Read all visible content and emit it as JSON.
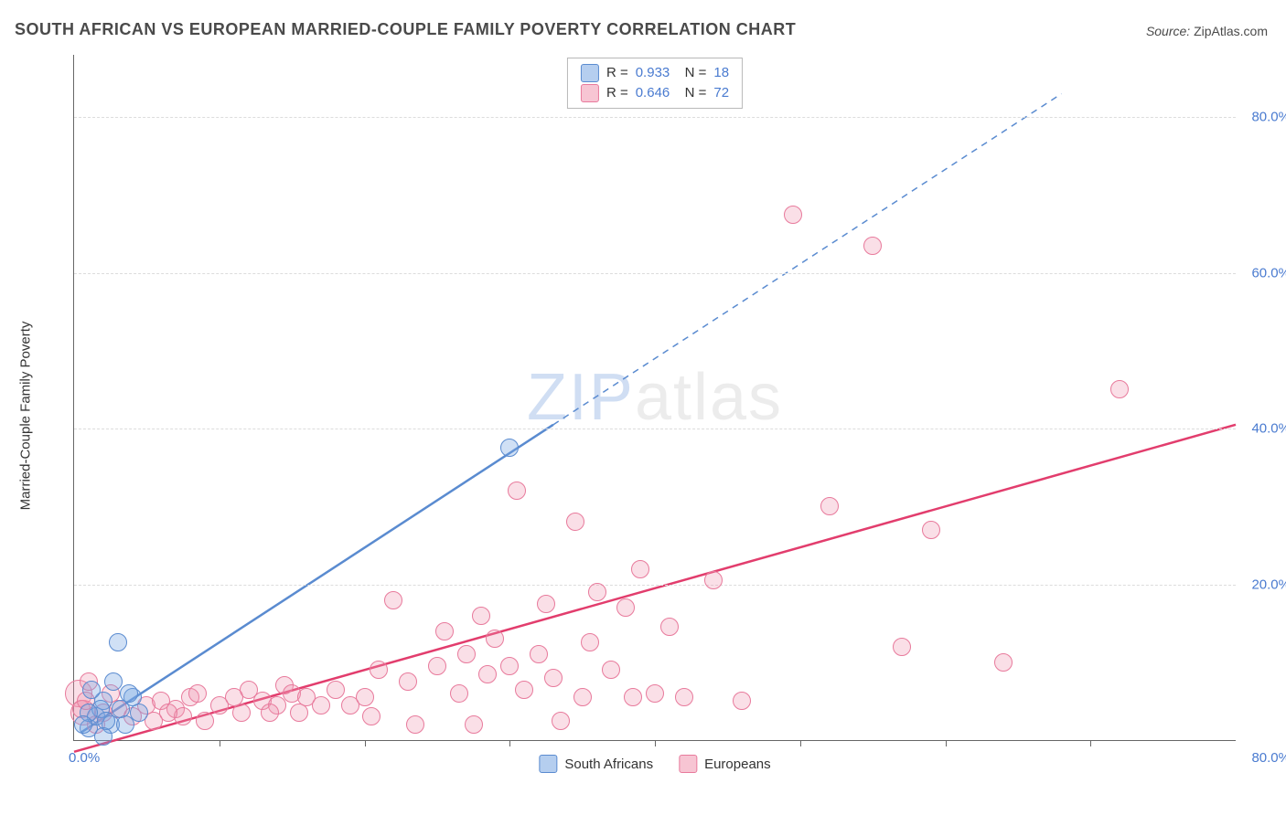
{
  "title": "SOUTH AFRICAN VS EUROPEAN MARRIED-COUPLE FAMILY POVERTY CORRELATION CHART",
  "source_label": "Source:",
  "source_value": "ZipAtlas.com",
  "watermark": {
    "zip": "ZIP",
    "rest": "atlas"
  },
  "chart": {
    "type": "scatter",
    "ylabel": "Married-Couple Family Poverty",
    "xlim": [
      0,
      80
    ],
    "ylim": [
      0,
      88
    ],
    "x_origin_label": "0.0%",
    "x_max_label": "80.0%",
    "x_tick_positions": [
      10,
      20,
      30,
      40,
      50,
      60,
      70
    ],
    "y_gridlines": [
      20,
      40,
      60,
      80
    ],
    "y_tick_labels": [
      "20.0%",
      "40.0%",
      "60.0%",
      "80.0%"
    ],
    "background_color": "#ffffff",
    "grid_color": "#dcdcdc",
    "axis_color": "#666666",
    "tick_label_color": "#4a7bd0",
    "label_fontsize": 15,
    "title_fontsize": 18,
    "point_radius": 9,
    "series": [
      {
        "name": "South Africans",
        "class": "blue",
        "color": "#5a8bd0",
        "fill": "rgba(120,165,225,0.35)",
        "stats": {
          "R": "0.933",
          "N": "18"
        },
        "trend": {
          "style": "solid-then-dashed",
          "solid": {
            "x1": 0.5,
            "y1": 1.0,
            "x2": 33,
            "y2": 40.5
          },
          "dashed": {
            "x1": 33,
            "y1": 40.5,
            "x2": 68,
            "y2": 83
          }
        },
        "points": [
          [
            1.0,
            1.5
          ],
          [
            1.5,
            3.0
          ],
          [
            2.0,
            5.0
          ],
          [
            2.5,
            2.0
          ],
          [
            1.2,
            6.5
          ],
          [
            3.0,
            12.5
          ],
          [
            3.2,
            4.0
          ],
          [
            2.7,
            7.5
          ],
          [
            1.8,
            4.0
          ],
          [
            2.2,
            2.5
          ],
          [
            4.0,
            5.5
          ],
          [
            4.5,
            3.5
          ],
          [
            3.5,
            2.0
          ],
          [
            2.0,
            0.5
          ],
          [
            1.0,
            3.5
          ],
          [
            0.6,
            2.0
          ],
          [
            30.0,
            37.5
          ],
          [
            3.8,
            6.0
          ]
        ]
      },
      {
        "name": "Europeans",
        "class": "pink",
        "color": "#e23d6d",
        "fill": "rgba(240,150,175,0.30)",
        "stats": {
          "R": "0.646",
          "N": "72"
        },
        "trend": {
          "style": "solid",
          "solid": {
            "x1": 0,
            "y1": -1.5,
            "x2": 80,
            "y2": 40.5
          }
        },
        "points": [
          [
            0.5,
            4.0
          ],
          [
            0.8,
            5.0
          ],
          [
            1.5,
            2.0
          ],
          [
            2.0,
            3.5
          ],
          [
            3.0,
            4.0
          ],
          [
            4.0,
            3.0
          ],
          [
            5.0,
            4.5
          ],
          [
            5.5,
            2.5
          ],
          [
            6.0,
            5.0
          ],
          [
            7.0,
            4.0
          ],
          [
            7.5,
            3.0
          ],
          [
            8.0,
            5.5
          ],
          [
            8.5,
            6.0
          ],
          [
            9.0,
            2.5
          ],
          [
            10.0,
            4.5
          ],
          [
            11.0,
            5.5
          ],
          [
            11.5,
            3.5
          ],
          [
            12.0,
            6.5
          ],
          [
            13.0,
            5.0
          ],
          [
            14.0,
            4.5
          ],
          [
            14.5,
            7.0
          ],
          [
            15.0,
            6.0
          ],
          [
            15.5,
            3.5
          ],
          [
            16.0,
            5.5
          ],
          [
            17.0,
            4.5
          ],
          [
            18.0,
            6.5
          ],
          [
            19.0,
            4.5
          ],
          [
            20.0,
            5.5
          ],
          [
            20.5,
            3.0
          ],
          [
            21.0,
            9.0
          ],
          [
            22.0,
            18.0
          ],
          [
            23.0,
            7.5
          ],
          [
            23.5,
            2.0
          ],
          [
            25.0,
            9.5
          ],
          [
            25.5,
            14.0
          ],
          [
            26.5,
            6.0
          ],
          [
            27.0,
            11.0
          ],
          [
            27.5,
            2.0
          ],
          [
            28.0,
            16.0
          ],
          [
            28.5,
            8.5
          ],
          [
            29.0,
            13.0
          ],
          [
            30.0,
            9.5
          ],
          [
            30.5,
            32.0
          ],
          [
            31.0,
            6.5
          ],
          [
            32.0,
            11.0
          ],
          [
            32.5,
            17.5
          ],
          [
            33.0,
            8.0
          ],
          [
            33.5,
            2.5
          ],
          [
            34.5,
            28.0
          ],
          [
            35.0,
            5.5
          ],
          [
            35.5,
            12.5
          ],
          [
            36.0,
            19.0
          ],
          [
            37.0,
            9.0
          ],
          [
            38.0,
            17.0
          ],
          [
            38.5,
            5.5
          ],
          [
            39.0,
            22.0
          ],
          [
            40.0,
            6.0
          ],
          [
            41.0,
            14.5
          ],
          [
            42.0,
            5.5
          ],
          [
            44.0,
            20.5
          ],
          [
            46.0,
            5.0
          ],
          [
            49.5,
            67.5
          ],
          [
            52.0,
            30.0
          ],
          [
            55.0,
            63.5
          ],
          [
            57.0,
            12.0
          ],
          [
            59.0,
            27.0
          ],
          [
            64.0,
            10.0
          ],
          [
            72.0,
            45.0
          ],
          [
            1.0,
            7.5
          ],
          [
            2.5,
            6.0
          ],
          [
            6.5,
            3.5
          ],
          [
            13.5,
            3.5
          ]
        ]
      }
    ],
    "big_points_pink": [
      {
        "x": 0.3,
        "y": 6.0,
        "r": 14
      },
      {
        "x": 0.6,
        "y": 3.5,
        "r": 13
      }
    ],
    "legend_bottom": [
      {
        "class": "blue",
        "label": "South Africans"
      },
      {
        "class": "pink",
        "label": "Europeans"
      }
    ]
  }
}
